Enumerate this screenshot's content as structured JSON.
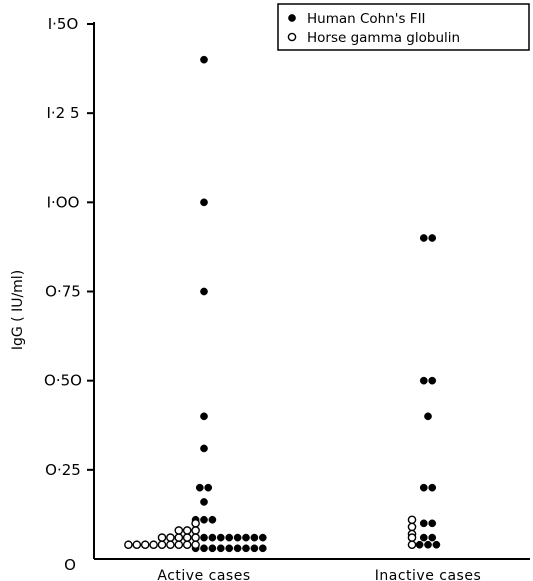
{
  "chart_data": {
    "type": "scatter",
    "ylabel": "IgG ( IU/ml)",
    "xlabel": "",
    "ylim": [
      0,
      1.5
    ],
    "yticks": [
      {
        "value": 0,
        "label": "O"
      },
      {
        "value": 0.25,
        "label": "O·25"
      },
      {
        "value": 0.5,
        "label": "O·5O"
      },
      {
        "value": 0.75,
        "label": "O·75"
      },
      {
        "value": 1.0,
        "label": "I·OO"
      },
      {
        "value": 1.25,
        "label": "I·2 5"
      },
      {
        "value": 1.5,
        "label": "I·5O"
      }
    ],
    "categories": [
      "Active cases",
      "Inactive cases"
    ],
    "legend_position": "top-right",
    "series": [
      {
        "name": "Human Cohn's FII",
        "marker": "filled",
        "color": "#000000",
        "points": [
          {
            "category": 0,
            "values": [
              1.4,
              1.0,
              0.75,
              0.4,
              0.31,
              0.2,
              0.2,
              0.16,
              0.11,
              0.11,
              0.11,
              0.06,
              0.06,
              0.06,
              0.06,
              0.06,
              0.06,
              0.06,
              0.06,
              0.06,
              0.03,
              0.03,
              0.03,
              0.03,
              0.03,
              0.03,
              0.03,
              0.03,
              0.03
            ]
          },
          {
            "category": 1,
            "values": [
              0.9,
              0.9,
              0.5,
              0.5,
              0.4,
              0.2,
              0.2,
              0.1,
              0.1,
              0.06,
              0.06,
              0.04,
              0.04,
              0.04
            ]
          }
        ]
      },
      {
        "name": "Horse gamma globulin",
        "marker": "open",
        "color": "#000000",
        "points": [
          {
            "category": 0,
            "values": [
              0.1,
              0.08,
              0.08,
              0.08,
              0.06,
              0.06,
              0.06,
              0.06,
              0.06,
              0.04,
              0.04,
              0.04,
              0.04,
              0.04,
              0.04,
              0.04,
              0.04,
              0.04
            ]
          },
          {
            "category": 1,
            "values": [
              0.11,
              0.09,
              0.07,
              0.06,
              0.04
            ]
          }
        ]
      }
    ]
  }
}
